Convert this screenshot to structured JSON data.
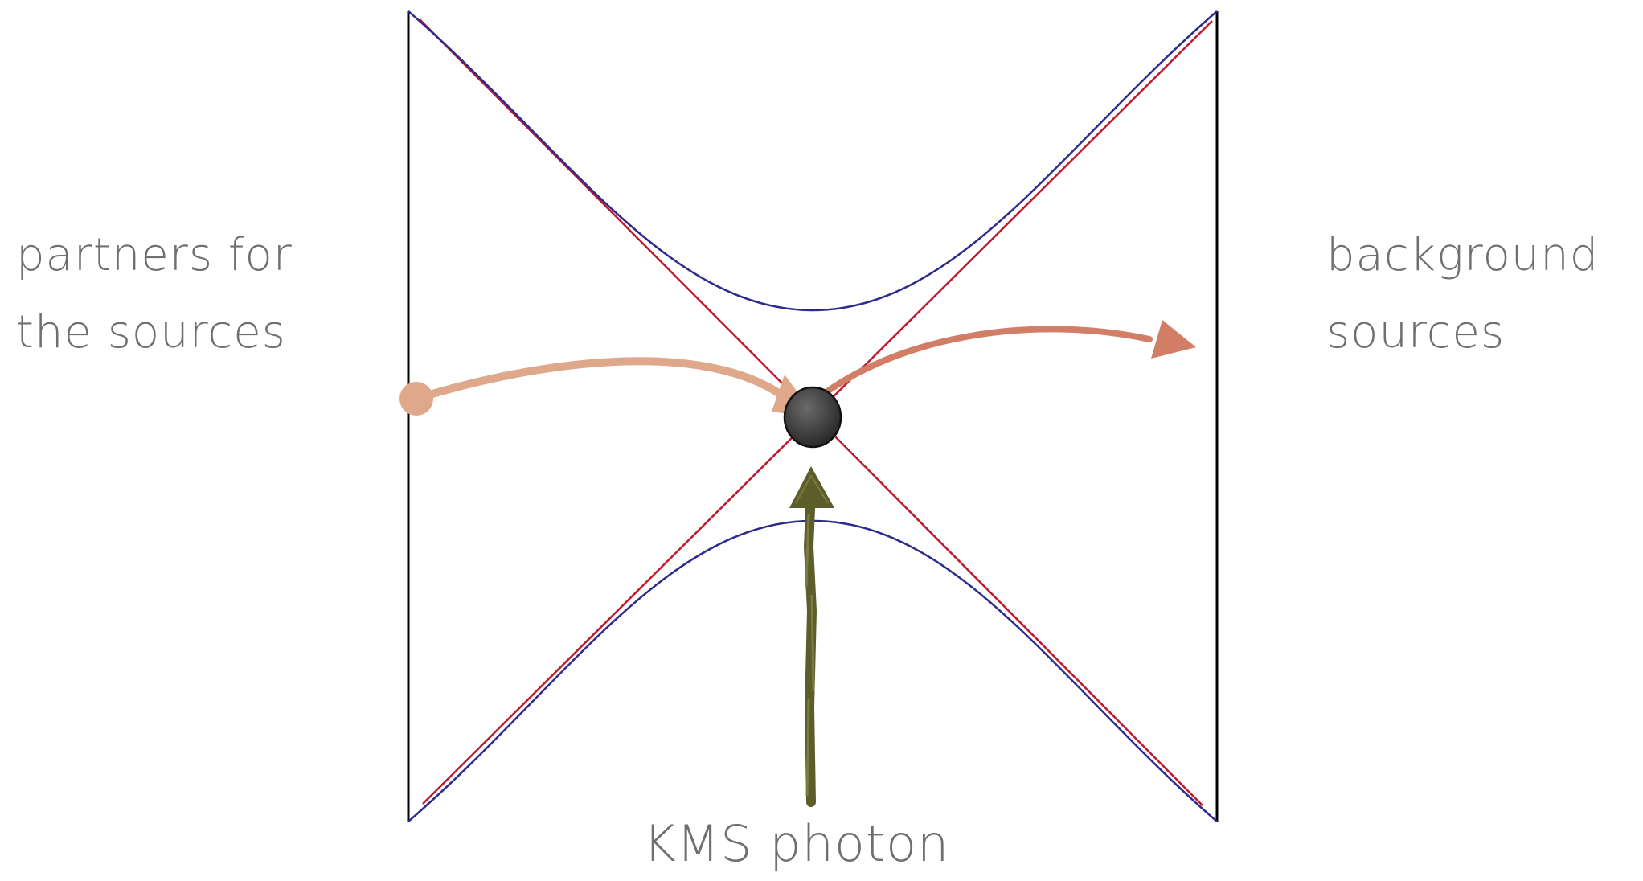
{
  "labels": {
    "left": {
      "line1": "partners for",
      "line2": "the sources"
    },
    "right": {
      "line1": "background",
      "line2": "sources"
    },
    "bottom": "KMS photon"
  },
  "colors": {
    "boundary": "#000000",
    "horizon": "#c0182e",
    "hyperbola": "#2e2b8f",
    "left_arrow": "#e0a88a",
    "right_arrow": "#d27e66",
    "particle": "#444444",
    "kms_arrow": "#5c5e2a",
    "text": "#6f6f6f"
  }
}
